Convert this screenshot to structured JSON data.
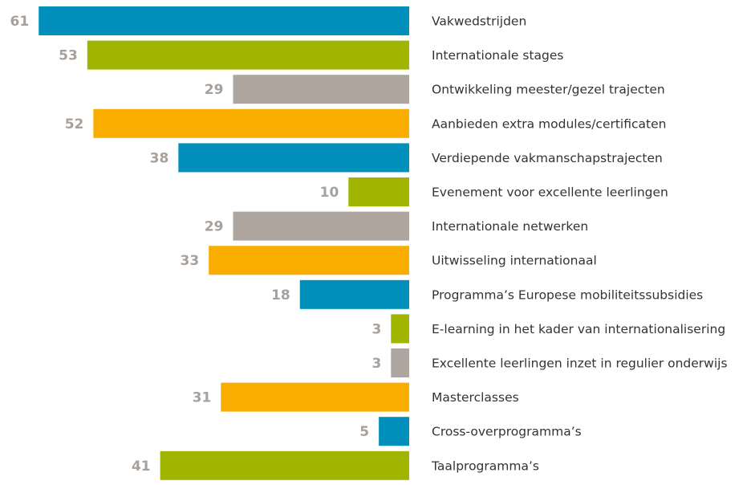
{
  "chart_data": {
    "type": "bar",
    "orientation": "horizontal",
    "categories": [
      "Vakwedstrijden",
      "Internationale stages",
      "Ontwikkeling meester/gezel trajecten",
      "Aanbieden extra modules/certificaten",
      "Verdiepende vakmanschapstrajecten",
      "Evenement voor excellente leerlingen",
      "Internationale netwerken",
      "Uitwisseling internationaal",
      "Programma’s Europese mobiliteitssubsidies",
      "E-learning in het kader van internationalisering",
      "Excellente leerlingen inzet in regulier onderwijs",
      "Masterclasses",
      "Cross-overprogramma’s",
      "Taalprogramma’s"
    ],
    "values": [
      61,
      53,
      29,
      52,
      38,
      10,
      29,
      33,
      18,
      3,
      3,
      31,
      5,
      41
    ],
    "colors": [
      "#0090bb",
      "#a0b400",
      "#aea59f",
      "#f8ad00",
      "#0090bb",
      "#a0b400",
      "#aea59f",
      "#f8ad00",
      "#0090bb",
      "#a0b400",
      "#aea59f",
      "#f8ad00",
      "#0090bb",
      "#a0b400"
    ]
  }
}
